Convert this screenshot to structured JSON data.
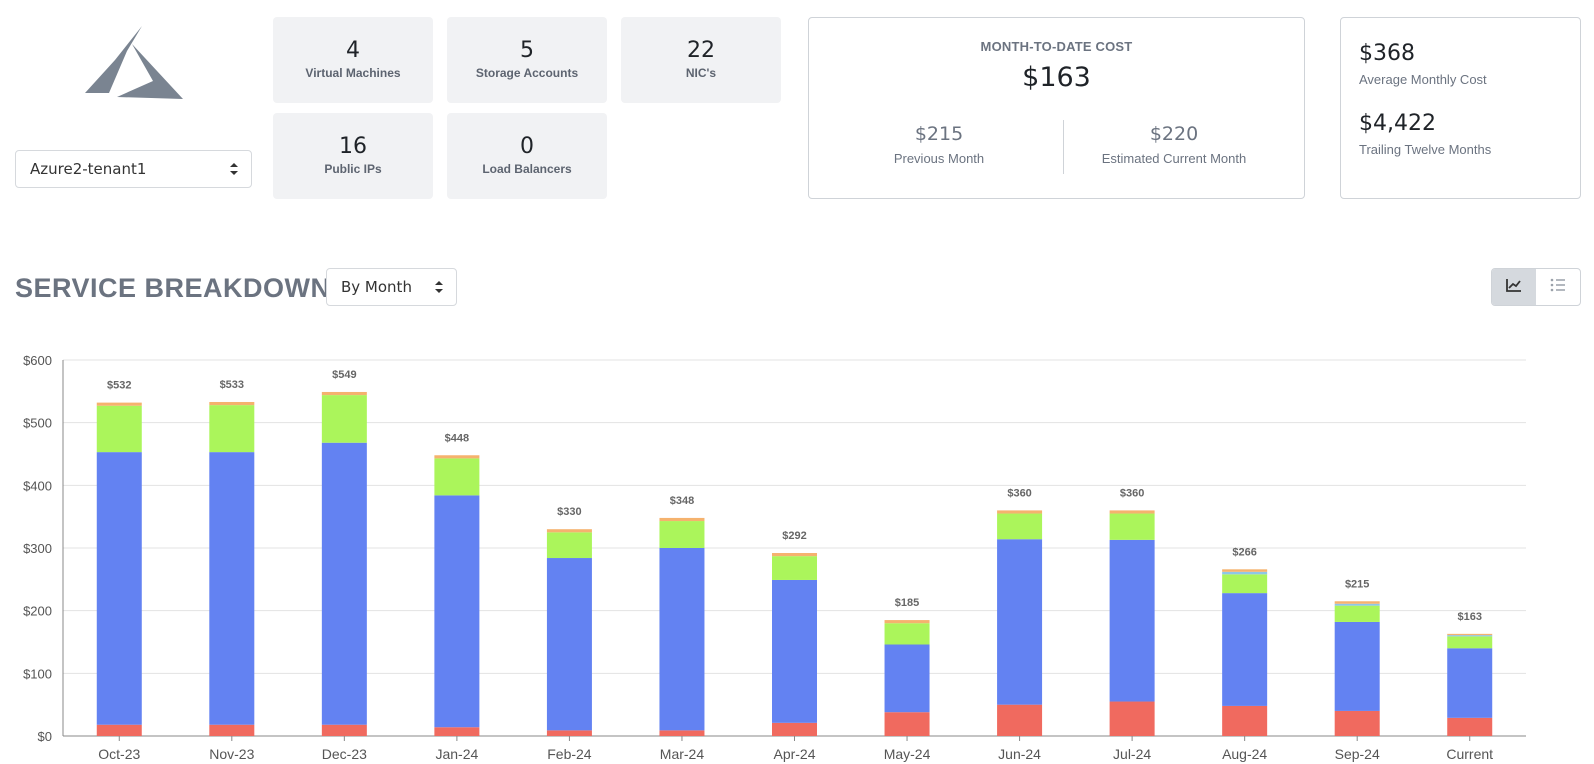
{
  "tenant": {
    "selected": "Azure2-tenant1"
  },
  "logo": {
    "icon": "azure-logo"
  },
  "stats": [
    {
      "value": "4",
      "label": "Virtual Machines"
    },
    {
      "value": "5",
      "label": "Storage Accounts"
    },
    {
      "value": "22",
      "label": "NIC's"
    },
    {
      "value": "16",
      "label": "Public IPs"
    },
    {
      "value": "0",
      "label": "Load Balancers"
    }
  ],
  "cost": {
    "mtd_title": "MONTH-TO-DATE COST",
    "mtd_value": "$163",
    "previous_value": "$215",
    "previous_label": "Previous Month",
    "estimated_value": "$220",
    "estimated_label": "Estimated Current Month",
    "average_value": "$368",
    "average_label": "Average Monthly Cost",
    "trailing_value": "$4,422",
    "trailing_label": "Trailing Twelve Months"
  },
  "breakdown": {
    "title": "SERVICE BREAKDOWN",
    "period": "By Month",
    "view_icons": [
      "line-chart-icon",
      "list-icon"
    ]
  },
  "colors": {
    "red": "#f06a5f",
    "blue": "#6382f2",
    "green": "#abf55b",
    "orange": "#f5b26e",
    "lightblue": "#8ec6e8"
  },
  "chart_data": {
    "type": "bar",
    "stacked": true,
    "categories": [
      "Oct-23",
      "Nov-23",
      "Dec-23",
      "Jan-24",
      "Feb-24",
      "Mar-24",
      "Apr-24",
      "May-24",
      "Jun-24",
      "Jul-24",
      "Aug-24",
      "Sep-24",
      "Current"
    ],
    "series": [
      {
        "color": "#f06a5f",
        "values": [
          18,
          18,
          18,
          14,
          9,
          9,
          21,
          38,
          50,
          55,
          48,
          40,
          29
        ]
      },
      {
        "color": "#6382f2",
        "values": [
          435,
          435,
          450,
          370,
          275,
          291,
          228,
          108,
          264,
          258,
          180,
          142,
          111
        ]
      },
      {
        "color": "#abf55b",
        "values": [
          74,
          75,
          76,
          59,
          41,
          43,
          38,
          34,
          41,
          42,
          30,
          26,
          19
        ]
      },
      {
        "color": "#8ec6e8",
        "values": [
          0,
          0,
          0,
          0,
          0,
          0,
          0,
          0,
          0,
          0,
          4,
          3,
          2
        ]
      },
      {
        "color": "#f5b26e",
        "values": [
          5,
          5,
          5,
          5,
          5,
          5,
          5,
          5,
          5,
          5,
          4,
          4,
          2
        ]
      }
    ],
    "totals_labels": [
      "$532",
      "$533",
      "$549",
      "$448",
      "$330",
      "$348",
      "$292",
      "$185",
      "$360",
      "$360",
      "$266",
      "$215",
      "$163"
    ],
    "y_ticks": [
      "$0",
      "$100",
      "$200",
      "$300",
      "$400",
      "$500",
      "$600"
    ],
    "ylim": [
      0,
      600
    ],
    "grid": true,
    "legend": "none"
  }
}
